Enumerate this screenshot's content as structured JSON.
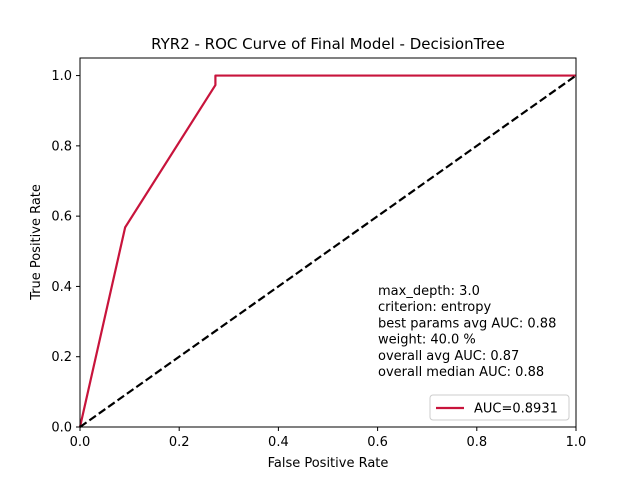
{
  "chart_data": {
    "type": "line",
    "title": "RYR2 - ROC Curve of Final Model - DecisionTree",
    "xlabel": "False Positive Rate",
    "ylabel": "True Positive Rate",
    "xlim": [
      0.0,
      1.0
    ],
    "ylim": [
      0.0,
      1.05
    ],
    "xticks": [
      "0.0",
      "0.2",
      "0.4",
      "0.6",
      "0.8",
      "1.0"
    ],
    "yticks": [
      "0.0",
      "0.2",
      "0.4",
      "0.6",
      "0.8",
      "1.0"
    ],
    "grid": false,
    "legend_position": "lower-right",
    "series": [
      {
        "name": "AUC=0.8931",
        "color": "#c8143c",
        "style": "solid",
        "x": [
          0.0,
          0.091,
          0.273,
          0.273,
          1.0
        ],
        "y": [
          0.0,
          0.568,
          0.973,
          1.0,
          1.0
        ]
      },
      {
        "color": "#000000",
        "style": "dashed",
        "x": [
          0.0,
          1.0
        ],
        "y": [
          0.0,
          1.0
        ]
      }
    ],
    "annotations": [
      "max_depth: 3.0",
      "criterion: entropy",
      "best params avg AUC: 0.88",
      "weight: 40.0 %",
      "overall avg AUC: 0.87",
      "overall median AUC: 0.88"
    ]
  }
}
